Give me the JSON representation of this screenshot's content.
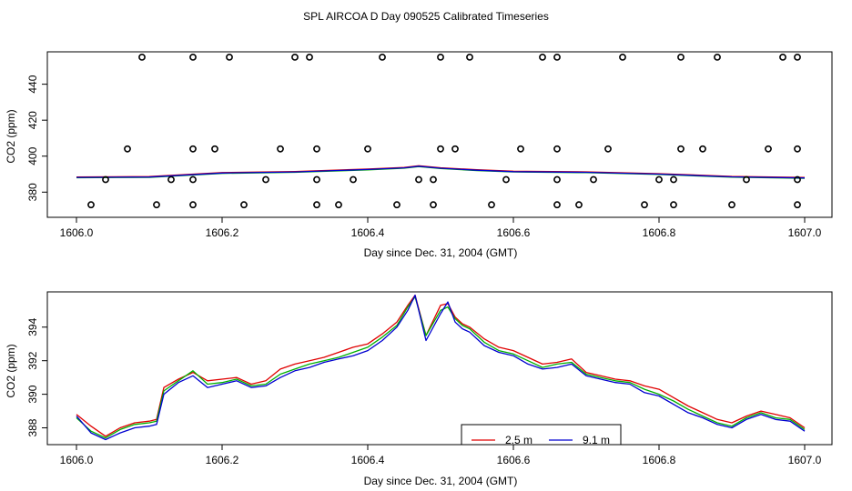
{
  "title": "SPL AIRCOA D  Day 090525  Calibrated Timeseries",
  "chart_data": [
    {
      "type": "scatter",
      "xlabel": "Day since Dec. 31, 2004 (GMT)",
      "ylabel": "CO2 (ppm)",
      "xlim": [
        1606.0,
        1607.0
      ],
      "ylim": [
        366,
        458
      ],
      "xticks": [
        "1606.0",
        "1606.2",
        "1606.4",
        "1606.6",
        "1606.8",
        "1607.0"
      ],
      "yticks": [
        "380",
        "400",
        "420",
        "440"
      ],
      "scatter_points": {
        "name": "raw samples",
        "x": [
          1606.09,
          1606.16,
          1606.21,
          1606.3,
          1606.32,
          1606.42,
          1606.5,
          1606.54,
          1606.64,
          1606.66,
          1606.75,
          1606.83,
          1606.88,
          1606.97,
          1606.99,
          1606.07,
          1606.16,
          1606.19,
          1606.28,
          1606.33,
          1606.4,
          1606.5,
          1606.52,
          1606.61,
          1606.66,
          1606.73,
          1606.83,
          1606.86,
          1606.95,
          1606.99,
          1606.04,
          1606.13,
          1606.16,
          1606.26,
          1606.33,
          1606.38,
          1606.47,
          1606.49,
          1606.59,
          1606.66,
          1606.71,
          1606.8,
          1606.82,
          1606.92,
          1606.99,
          1606.02,
          1606.11,
          1606.16,
          1606.23,
          1606.33,
          1606.36,
          1606.44,
          1606.49,
          1606.57,
          1606.66,
          1606.69,
          1606.78,
          1606.82,
          1606.9,
          1606.99
        ],
        "y": [
          455,
          455,
          455,
          455,
          455,
          455,
          455,
          455,
          455,
          455,
          455,
          455,
          455,
          455,
          455,
          404,
          404,
          404,
          404,
          404,
          404,
          404,
          404,
          404,
          404,
          404,
          404,
          404,
          404,
          404,
          387,
          387,
          387,
          387,
          387,
          387,
          387,
          387,
          387,
          387,
          387,
          387,
          387,
          387,
          387,
          373,
          373,
          373,
          373,
          373,
          373,
          373,
          373,
          373,
          373,
          373,
          373,
          373,
          373,
          373
        ]
      },
      "series": [
        {
          "name": "red",
          "color": "#e00000"
        },
        {
          "name": "green",
          "color": "#00b000"
        },
        {
          "name": "blue",
          "color": "#0000d0"
        }
      ],
      "smooth_x": [
        1606.0,
        1606.1,
        1606.2,
        1606.3,
        1606.4,
        1606.45,
        1606.47,
        1606.5,
        1606.55,
        1606.6,
        1606.7,
        1606.8,
        1606.9,
        1607.0
      ],
      "smooth_y": [
        388.2,
        388.4,
        390.6,
        391.2,
        392.6,
        393.5,
        394.4,
        393.3,
        392.2,
        391.4,
        391.0,
        390.0,
        388.5,
        387.9
      ]
    },
    {
      "type": "line",
      "xlabel": "Day since Dec. 31, 2004 (GMT)",
      "ylabel": "CO2 (ppm)",
      "xlim": [
        1606.0,
        1607.0
      ],
      "ylim": [
        387.0,
        396.1
      ],
      "xticks": [
        "1606.0",
        "1606.2",
        "1606.4",
        "1606.6",
        "1606.8",
        "1607.0"
      ],
      "yticks": [
        "388",
        "390",
        "392",
        "394"
      ],
      "x": [
        1606.0,
        1606.02,
        1606.04,
        1606.06,
        1606.08,
        1606.1,
        1606.11,
        1606.12,
        1606.14,
        1606.16,
        1606.18,
        1606.2,
        1606.22,
        1606.24,
        1606.26,
        1606.28,
        1606.3,
        1606.32,
        1606.34,
        1606.36,
        1606.38,
        1606.4,
        1606.42,
        1606.44,
        1606.455,
        1606.465,
        1606.48,
        1606.5,
        1606.51,
        1606.52,
        1606.53,
        1606.54,
        1606.56,
        1606.58,
        1606.6,
        1606.62,
        1606.64,
        1606.66,
        1606.68,
        1606.7,
        1606.72,
        1606.74,
        1606.76,
        1606.78,
        1606.8,
        1606.82,
        1606.84,
        1606.86,
        1606.88,
        1606.9,
        1606.92,
        1606.94,
        1606.96,
        1606.98,
        1607.0
      ],
      "series": [
        {
          "name": "2.5 m",
          "color": "#e00000",
          "values": [
            388.8,
            388.1,
            387.5,
            388.0,
            388.3,
            388.4,
            388.5,
            390.4,
            390.9,
            391.3,
            390.8,
            390.9,
            391.0,
            390.6,
            390.8,
            391.5,
            391.8,
            392.0,
            392.2,
            392.5,
            392.8,
            393.0,
            393.6,
            394.3,
            395.3,
            395.9,
            393.5,
            395.3,
            395.4,
            394.6,
            394.2,
            394.0,
            393.3,
            392.8,
            392.6,
            392.2,
            391.8,
            391.9,
            392.1,
            391.3,
            391.1,
            390.9,
            390.8,
            390.5,
            390.3,
            389.8,
            389.3,
            388.9,
            388.5,
            388.3,
            388.7,
            389.0,
            388.8,
            388.6,
            388.0
          ]
        },
        {
          "name": "green",
          "color": "#00b000",
          "values": [
            388.6,
            387.8,
            387.4,
            387.9,
            388.2,
            388.3,
            388.4,
            390.2,
            390.8,
            391.4,
            390.6,
            390.7,
            390.9,
            390.5,
            390.6,
            391.2,
            391.5,
            391.8,
            392.0,
            392.2,
            392.5,
            392.8,
            393.4,
            394.1,
            395.2,
            395.8,
            393.5,
            395.0,
            395.2,
            394.5,
            394.1,
            393.9,
            393.1,
            392.6,
            392.4,
            392.0,
            391.6,
            391.8,
            391.9,
            391.2,
            391.0,
            390.8,
            390.7,
            390.3,
            390.0,
            389.6,
            389.1,
            388.7,
            388.3,
            388.1,
            388.6,
            388.9,
            388.6,
            388.5,
            387.9
          ]
        },
        {
          "name": "9.1 m",
          "color": "#0000d0",
          "values": [
            388.7,
            387.7,
            387.3,
            387.7,
            388.0,
            388.1,
            388.2,
            390.0,
            390.7,
            391.1,
            390.4,
            390.6,
            390.8,
            390.4,
            390.5,
            391.0,
            391.4,
            391.6,
            391.9,
            392.1,
            392.3,
            392.6,
            393.2,
            394.0,
            395.0,
            395.9,
            393.2,
            394.8,
            395.5,
            394.3,
            393.9,
            393.7,
            392.9,
            392.5,
            392.3,
            391.8,
            391.5,
            391.6,
            391.8,
            391.1,
            390.9,
            390.7,
            390.6,
            390.1,
            389.9,
            389.4,
            388.9,
            388.6,
            388.2,
            388.0,
            388.5,
            388.8,
            388.5,
            388.4,
            387.8
          ]
        }
      ],
      "legend": {
        "placement": "bottom-center",
        "entries": [
          "2.5 m",
          "9.1 m"
        ]
      }
    }
  ]
}
